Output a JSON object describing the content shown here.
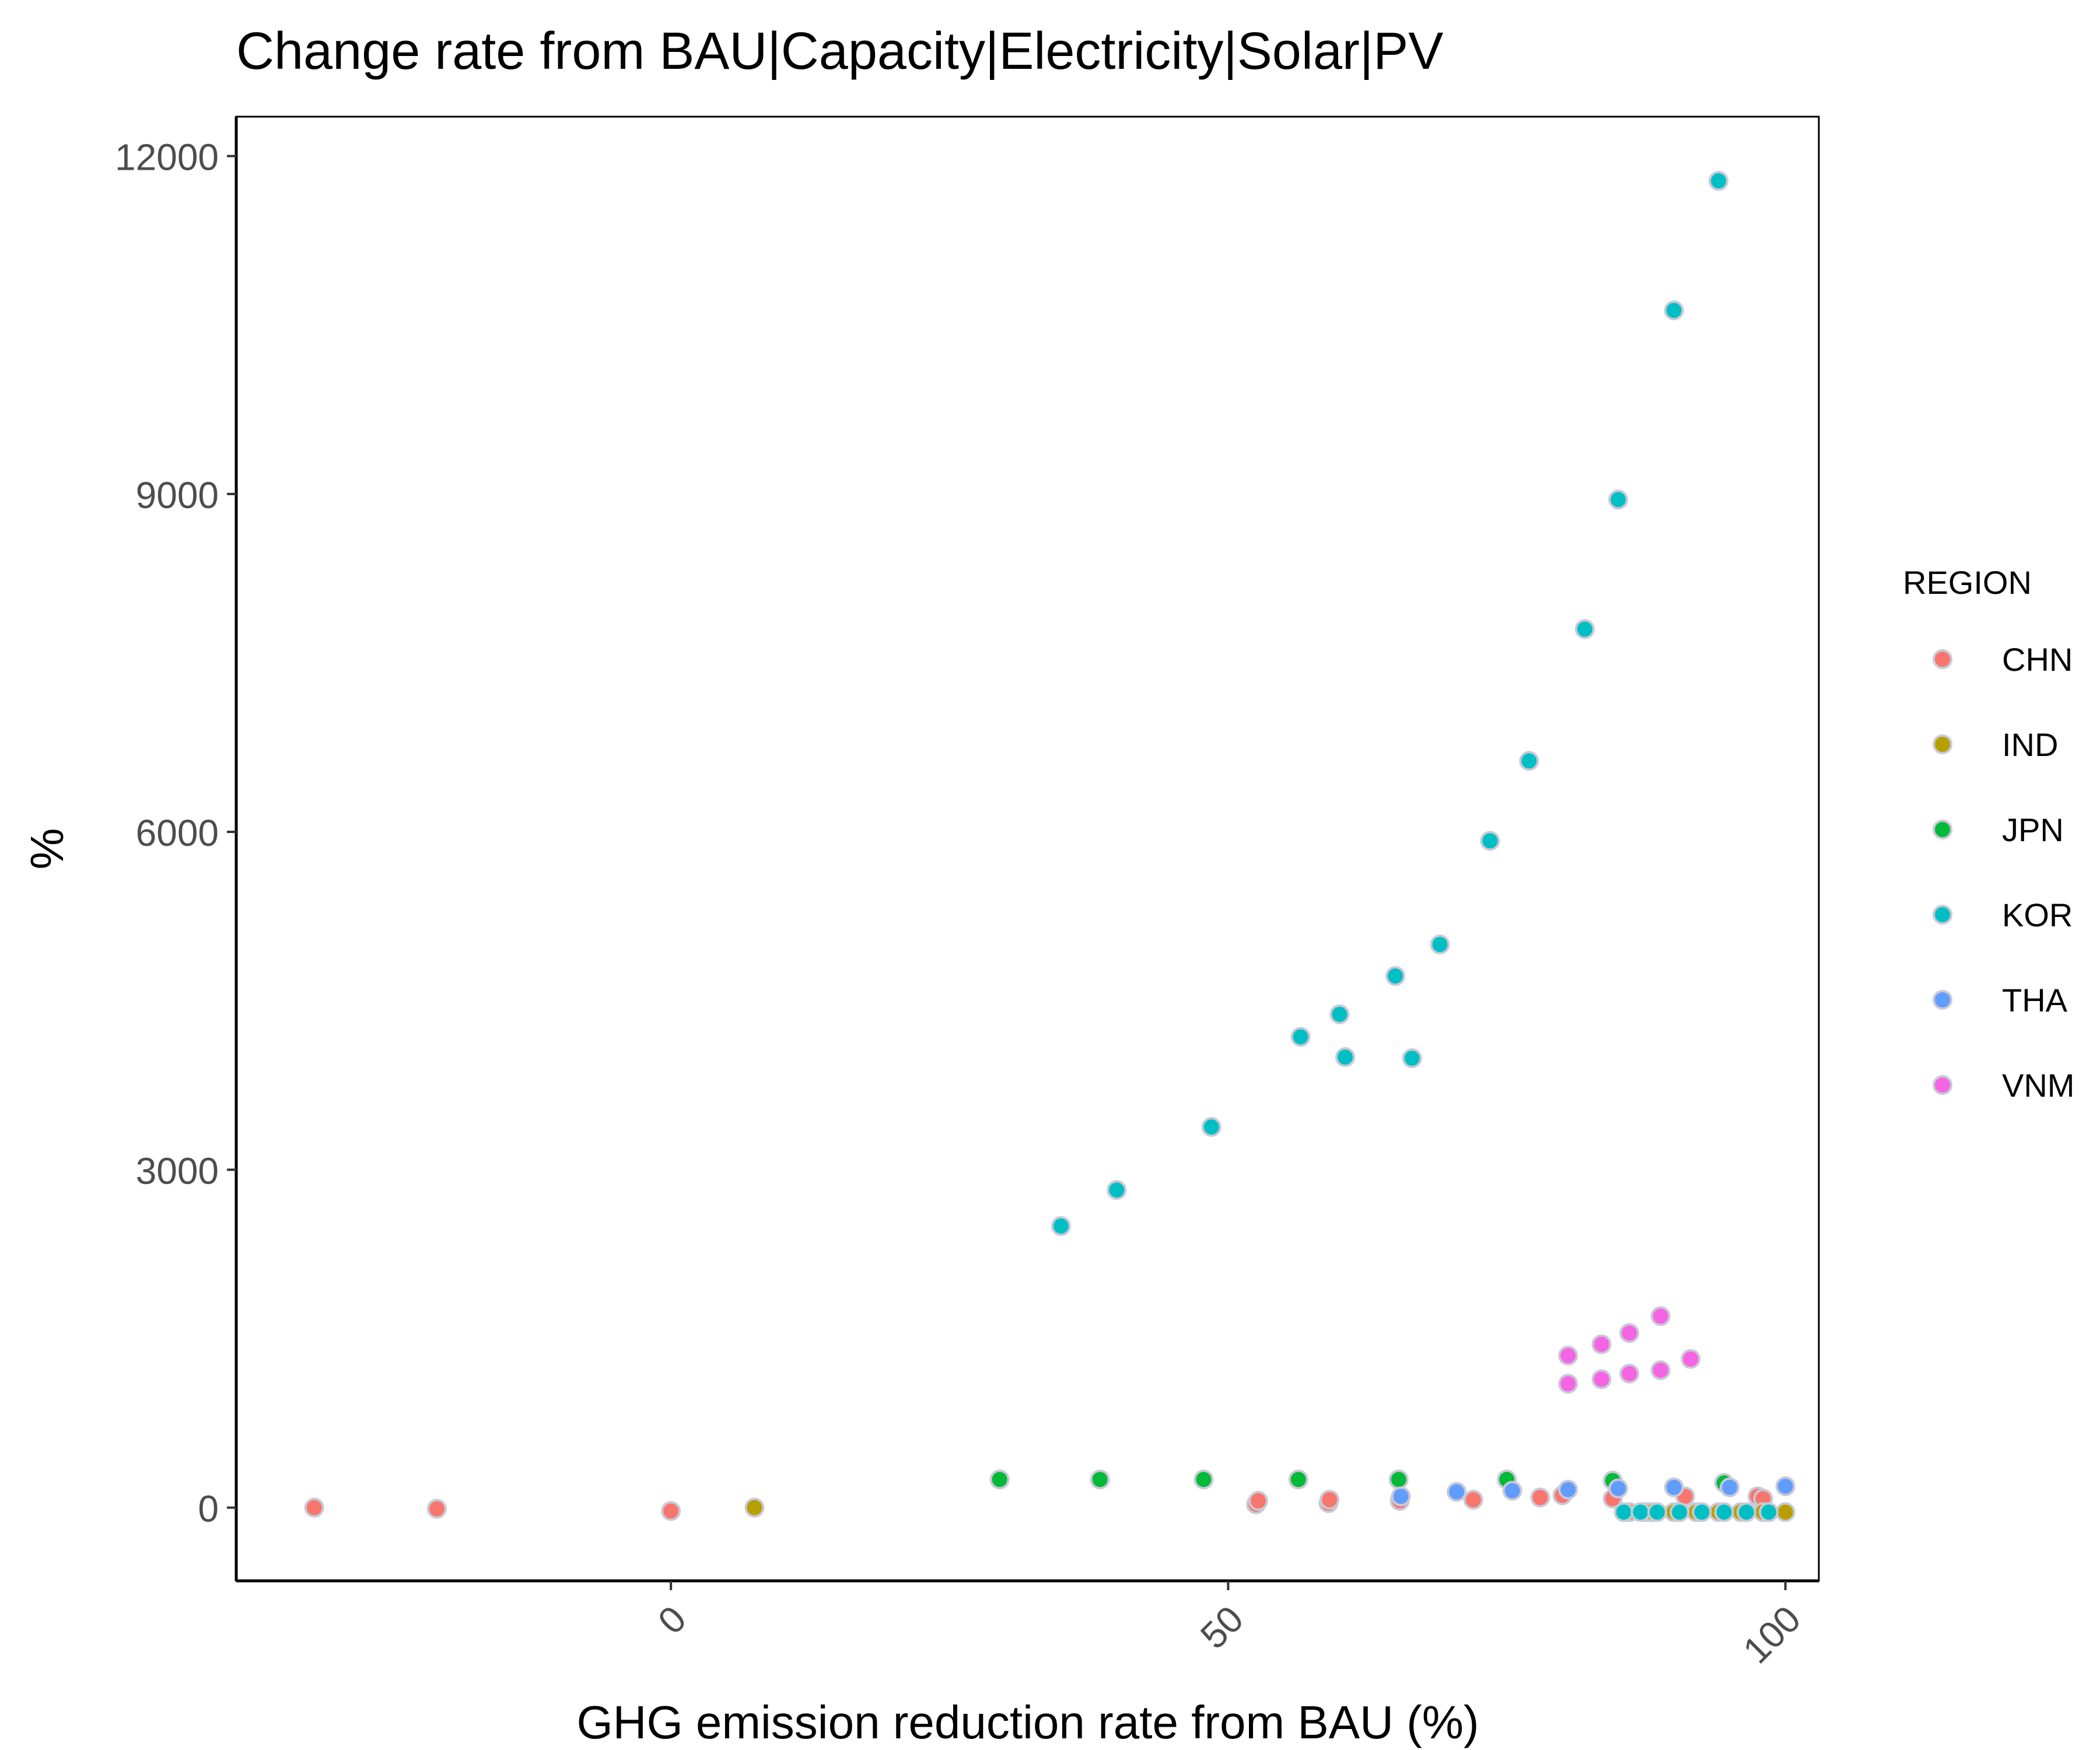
{
  "chart_data": {
    "type": "scatter",
    "title": "Change rate from BAU|Capacity|Electricity|Solar|PV",
    "xlabel": "GHG emission reduction rate from BAU (%)",
    "ylabel": "%",
    "xlim": [
      -39,
      103
    ],
    "ylim": [
      -650,
      12350
    ],
    "x_ticks": [
      0,
      50,
      100
    ],
    "x_tick_labels": [
      "0",
      "50",
      "100"
    ],
    "y_ticks": [
      0,
      3000,
      6000,
      9000,
      12000
    ],
    "y_tick_labels": [
      "0",
      "3000",
      "6000",
      "9000",
      "12000"
    ],
    "grid": false,
    "legend": {
      "title": "REGION",
      "position": "right"
    },
    "series": [
      {
        "name": "CHN",
        "color": "#F8766D",
        "points": [
          [
            -32,
            0
          ],
          [
            -21,
            -10
          ],
          [
            0,
            -30
          ],
          [
            52.5,
            30
          ],
          [
            52.7,
            60
          ],
          [
            59,
            40
          ],
          [
            59.1,
            70
          ],
          [
            65.4,
            60
          ],
          [
            72,
            70
          ],
          [
            78,
            90
          ],
          [
            80,
            110
          ],
          [
            84.5,
            80
          ],
          [
            91,
            100
          ],
          [
            97.5,
            100
          ],
          [
            98,
            80
          ]
        ]
      },
      {
        "name": "IND",
        "color": "#B79F00",
        "points": [
          [
            7.5,
            0
          ],
          [
            86,
            -40
          ],
          [
            87.5,
            -40
          ],
          [
            88,
            -40
          ],
          [
            90,
            -40
          ],
          [
            92,
            -40
          ],
          [
            94,
            -40
          ],
          [
            96,
            -40
          ],
          [
            98,
            -40
          ],
          [
            100,
            -40
          ]
        ]
      },
      {
        "name": "JPN",
        "color": "#00BA38",
        "points": [
          [
            29.5,
            250
          ],
          [
            38.5,
            250
          ],
          [
            47.8,
            250
          ],
          [
            56.3,
            250
          ],
          [
            65.3,
            250
          ],
          [
            75,
            250
          ],
          [
            84.5,
            240
          ],
          [
            94.5,
            220
          ]
        ]
      },
      {
        "name": "KOR",
        "color": "#00BFC4",
        "points": [
          [
            35,
            2500
          ],
          [
            40,
            2820
          ],
          [
            48.5,
            3380
          ],
          [
            56.5,
            4180
          ],
          [
            60,
            4380
          ],
          [
            60.5,
            4000
          ],
          [
            65,
            4720
          ],
          [
            66.5,
            3990
          ],
          [
            69,
            5000
          ],
          [
            73.5,
            5920
          ],
          [
            77,
            6630
          ],
          [
            82,
            7800
          ],
          [
            85,
            8950
          ],
          [
            90,
            10630
          ],
          [
            94,
            11780
          ],
          [
            85.5,
            -40
          ],
          [
            87,
            -40
          ],
          [
            88.5,
            -40
          ],
          [
            90.5,
            -40
          ],
          [
            92.5,
            -40
          ],
          [
            94.5,
            -40
          ],
          [
            96.5,
            -40
          ],
          [
            98.5,
            -40
          ]
        ]
      },
      {
        "name": "THA",
        "color": "#619CFF",
        "points": [
          [
            65.5,
            100
          ],
          [
            70.5,
            140
          ],
          [
            75.5,
            150
          ],
          [
            80.5,
            160
          ],
          [
            85,
            170
          ],
          [
            90,
            180
          ],
          [
            95,
            180
          ],
          [
            100,
            190
          ]
        ]
      },
      {
        "name": "VNM",
        "color": "#F564E3",
        "points": [
          [
            80.5,
            1100
          ],
          [
            80.5,
            1350
          ],
          [
            83.5,
            1140
          ],
          [
            83.5,
            1450
          ],
          [
            86,
            1190
          ],
          [
            86,
            1550
          ],
          [
            88.8,
            1220
          ],
          [
            88.8,
            1700
          ],
          [
            91.5,
            1320
          ]
        ]
      }
    ]
  }
}
